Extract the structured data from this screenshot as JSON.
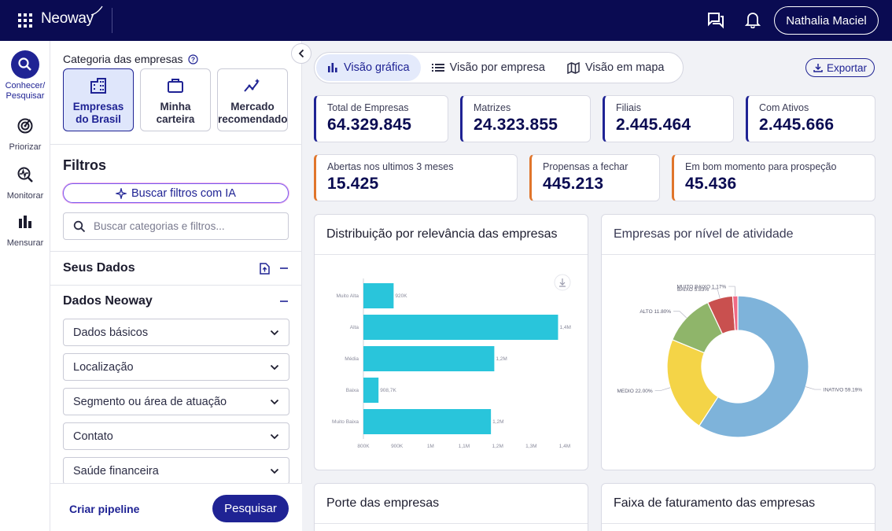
{
  "header": {
    "logo": "Neoway",
    "user_name": "Nathalia Maciel"
  },
  "rail": {
    "items": [
      {
        "label": "Conhecer/ Pesquisar",
        "icon": "search-icon"
      },
      {
        "label": "Priorizar",
        "icon": "target-icon"
      },
      {
        "label": "Monitorar",
        "icon": "monitor-icon"
      },
      {
        "label": "Mensurar",
        "icon": "bar-chart-icon"
      }
    ]
  },
  "filters": {
    "category_title": "Categoria das empresas",
    "categories": [
      {
        "label": "Empresas do Brasil",
        "line1": "Empresas",
        "line2": "do Brasil",
        "icon": "building-icon"
      },
      {
        "label": "Minha carteira",
        "line1": "Minha",
        "line2": "carteira",
        "icon": "briefcase-icon"
      },
      {
        "label": "Mercado recomendado",
        "line1": "Mercado",
        "line2": "recomendado",
        "icon": "trend-icon"
      }
    ],
    "title": "Filtros",
    "ai_button": "Buscar filtros com IA",
    "search_placeholder": "Buscar categorias e filtros...",
    "seus_dados": "Seus Dados",
    "dados_neoway": "Dados Neoway",
    "accordions": [
      "Dados básicos",
      "Localização",
      "Segmento ou área de atuação",
      "Contato",
      "Saúde financeira"
    ],
    "criar_pipeline": "Criar pipeline",
    "pesquisar": "Pesquisar"
  },
  "main": {
    "tabs": [
      "Visão gráfica",
      "Visão por empresa",
      "Visão em mapa"
    ],
    "export": "Exportar",
    "kpis_row1": [
      {
        "label": "Total de Empresas",
        "value": "64.329.845"
      },
      {
        "label": "Matrizes",
        "value": "24.323.855"
      },
      {
        "label": "Filiais",
        "value": "2.445.464"
      },
      {
        "label": "Com Ativos",
        "value": "2.445.666"
      }
    ],
    "kpis_row2": [
      {
        "label": "Abertas nos ultimos 3 meses",
        "value": "15.425"
      },
      {
        "label": "Propensas a fechar",
        "value": "445.213"
      },
      {
        "label": "Em bom momento para prospeção",
        "value": "45.436"
      }
    ],
    "card_titles": {
      "relevance": "Distribuição por relevância das empresas",
      "activity": "Empresas por nível de atividade",
      "size": "Porte das empresas",
      "revenue": "Faixa de faturamento das empresas"
    }
  },
  "chart_data": [
    {
      "type": "bar",
      "orientation": "horizontal",
      "title": "Distribuição por relevância das empresas",
      "categories": [
        "Muito Alta",
        "Alta",
        "Média",
        "Baixa",
        "Muito Baixa"
      ],
      "values": [
        920000,
        1400000,
        1200000,
        908700,
        1200000
      ],
      "data_labels": [
        "920K",
        "1,4M",
        "1,2M",
        "908,7K",
        "1,2M"
      ],
      "xlim": [
        800000,
        1400000
      ],
      "x_ticks": [
        "800K",
        "900K",
        "1M",
        "1,1M",
        "1,2M",
        "1,3M",
        "1,4M"
      ],
      "bar_values_for_length": [
        890000,
        1380000,
        1190000,
        845000,
        1180000
      ],
      "color": "#29c5db"
    },
    {
      "type": "pie",
      "donut": true,
      "title": "Empresas por nível de atividade",
      "slices": [
        {
          "label": "INATIVO",
          "value": 59.19,
          "text": "INATIVO 59.19%",
          "color": "#7eb3da"
        },
        {
          "label": "MEDIO",
          "value": 22.0,
          "text": "MEDIO 22.00%",
          "color": "#f4d447"
        },
        {
          "label": "ALTO",
          "value": 11.8,
          "text": "ALTO 11.80%",
          "color": "#8fb56a"
        },
        {
          "label": "BAIXO",
          "value": 5.83,
          "text": "BAIXO 5.83%",
          "color": "#c9504f"
        },
        {
          "label": "MUITO BAIXO",
          "value": 1.17,
          "text": "MUITO BAIXO 1.17%",
          "color": "#f06a86"
        }
      ]
    }
  ]
}
